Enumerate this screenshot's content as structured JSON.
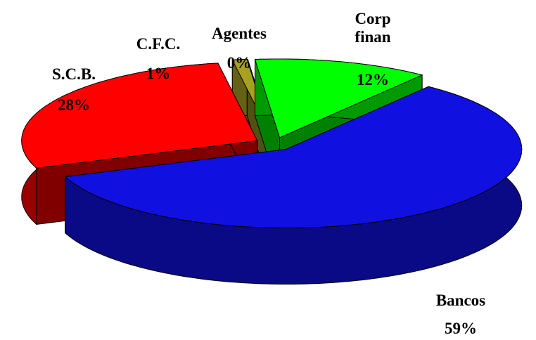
{
  "chart_data": {
    "type": "pie3d",
    "categories": [
      "Corp finan",
      "Bancos",
      "S.C.B.",
      "C.F.C.",
      "Agentes"
    ],
    "values": [
      12,
      59,
      28,
      1,
      0
    ],
    "value_labels": [
      "12%",
      "59%",
      "28%",
      "1%",
      "0%"
    ],
    "colors": [
      "#00ff00",
      "#1010e0",
      "#ff0000",
      "#a8a020",
      "#ffff00"
    ]
  }
}
